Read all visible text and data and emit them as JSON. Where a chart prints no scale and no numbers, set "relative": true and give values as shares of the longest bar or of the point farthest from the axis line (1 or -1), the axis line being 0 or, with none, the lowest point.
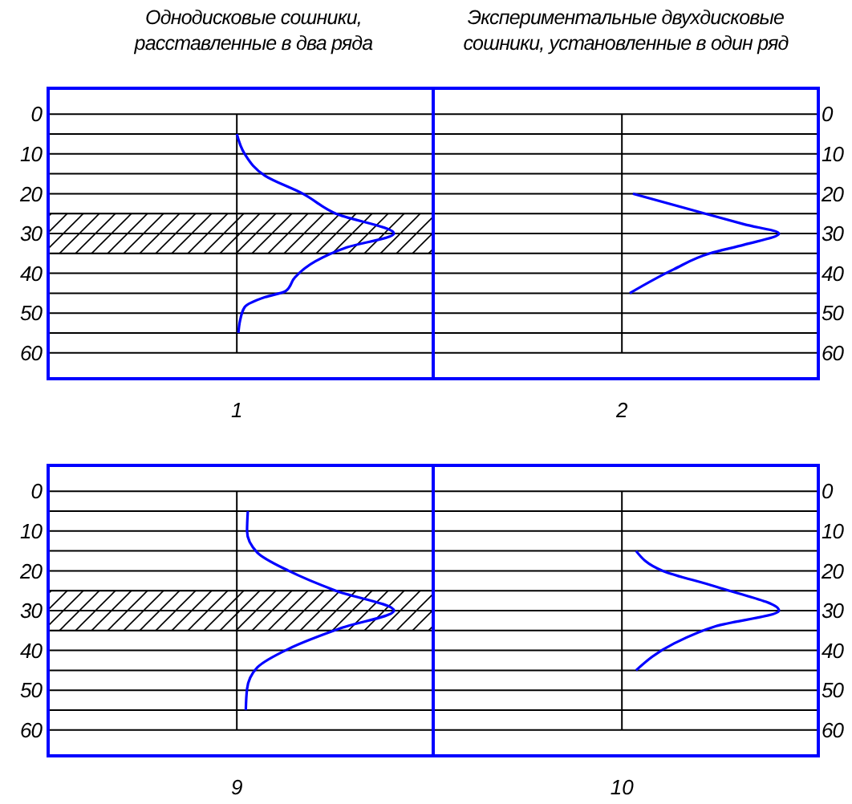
{
  "chart_data": [
    {
      "type": "line",
      "title": "Однодисковые сошники,\nрасставленные в два ряда",
      "xlabel": "1",
      "orientation": "horizontal",
      "relative": true,
      "ylim": [
        66.5,
        -6.5
      ],
      "yticks": [
        0,
        {
          "value": 5,
          "label": null
        },
        10,
        {
          "value": 15,
          "label": null
        },
        20,
        {
          "value": 25,
          "label": null
        },
        30,
        {
          "value": 35,
          "label": null
        },
        40,
        {
          "value": 45,
          "label": null
        },
        50,
        {
          "value": 55,
          "label": null
        },
        60
      ],
      "grid": "y",
      "tick_labels": "y",
      "bands": [
        {
          "axis": "y",
          "from": 25,
          "to": 35,
          "color": "#000000"
        }
      ],
      "series": [
        {
          "color": "#0000ff",
          "x": [
            5,
            10,
            15.5,
            20,
            25,
            30,
            33.5,
            37,
            41,
            44.5,
            46,
            48.5,
            52,
            55
          ],
          "values": [
            0,
            0.05,
            0.18,
            0.42,
            0.63,
            1,
            0.7,
            0.5,
            0.37,
            0.31,
            0.18,
            0.05,
            0.02,
            0.01
          ]
        }
      ]
    },
    {
      "type": "line",
      "title": "Экспериментальные двухдисковые\nсошники, установленные в один ряд",
      "xlabel": "2",
      "orientation": "horizontal",
      "relative": true,
      "ylim": [
        66.5,
        -6.5
      ],
      "yticks": [
        0,
        {
          "value": 5,
          "label": null
        },
        10,
        {
          "value": 15,
          "label": null
        },
        20,
        {
          "value": 25,
          "label": null
        },
        30,
        {
          "value": 35,
          "label": null
        },
        40,
        {
          "value": 45,
          "label": null
        },
        50,
        {
          "value": 55,
          "label": null
        },
        60
      ],
      "grid": "y",
      "tick_labels": "y",
      "series": [
        {
          "color": "#0000ff",
          "x": [
            20,
            25,
            27.7,
            30,
            32.8,
            35,
            39,
            45
          ],
          "values": [
            0.07,
            0.53,
            0.78,
            1,
            0.78,
            0.56,
            0.33,
            0.05
          ]
        }
      ]
    },
    {
      "type": "line",
      "xlabel": "9",
      "orientation": "horizontal",
      "relative": true,
      "ylim": [
        66.5,
        -6.5
      ],
      "yticks": [
        0,
        {
          "value": 5,
          "label": null
        },
        10,
        {
          "value": 15,
          "label": null
        },
        20,
        {
          "value": 25,
          "label": null
        },
        30,
        {
          "value": 35,
          "label": null
        },
        40,
        {
          "value": 45,
          "label": null
        },
        50,
        {
          "value": 55,
          "label": null
        },
        60
      ],
      "grid": "y",
      "tick_labels": "y",
      "bands": [
        {
          "axis": "y",
          "from": 25,
          "to": 35,
          "color": "#000000"
        }
      ],
      "series": [
        {
          "color": "#0000ff",
          "x": [
            5,
            10,
            15.4,
            20,
            25,
            30,
            34.3,
            39.6,
            44.3,
            49.7,
            55
          ],
          "values": [
            0.07,
            0.065,
            0.13,
            0.33,
            0.63,
            1,
            0.67,
            0.33,
            0.13,
            0.065,
            0.057
          ]
        }
      ]
    },
    {
      "type": "line",
      "xlabel": "10",
      "orientation": "horizontal",
      "relative": true,
      "ylim": [
        66.5,
        -6.5
      ],
      "yticks": [
        0,
        {
          "value": 5,
          "label": null
        },
        10,
        {
          "value": 15,
          "label": null
        },
        20,
        {
          "value": 25,
          "label": null
        },
        30,
        {
          "value": 35,
          "label": null
        },
        40,
        {
          "value": 45,
          "label": null
        },
        50,
        {
          "value": 55,
          "label": null
        },
        60
      ],
      "grid": "y",
      "tick_labels": "y",
      "series": [
        {
          "color": "#0000ff",
          "x": [
            15,
            20,
            24,
            30,
            33.9,
            38.3,
            45
          ],
          "values": [
            0.09,
            0.26,
            0.6,
            1,
            0.6,
            0.33,
            0.09
          ]
        }
      ]
    }
  ]
}
